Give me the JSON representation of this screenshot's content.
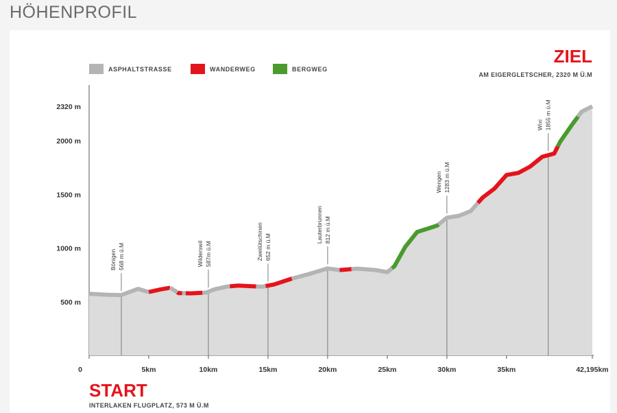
{
  "page": {
    "title": "HÖHENPROFIL"
  },
  "legend": [
    {
      "label": "ASPHALTSTRASSE",
      "color": "#b4b4b4"
    },
    {
      "label": "WANDERWEG",
      "color": "#e4141c"
    },
    {
      "label": "BERGWEG",
      "color": "#4a9a2e"
    }
  ],
  "finish": {
    "label": "ZIEL",
    "detail": "AM EIGERGLETSCHER, 2320 M Ü.M"
  },
  "start": {
    "label": "START",
    "detail": "INTERLAKEN FLUGPLATZ, 573 M Ü.M"
  },
  "chart_data": {
    "type": "area",
    "xlim": [
      0,
      42.195
    ],
    "ylim": [
      0,
      2330
    ],
    "x_ticks": [
      {
        "value": 0,
        "label": "0"
      },
      {
        "value": 5,
        "label": "5km"
      },
      {
        "value": 10,
        "label": "10km"
      },
      {
        "value": 15,
        "label": "15km"
      },
      {
        "value": 20,
        "label": "20km"
      },
      {
        "value": 25,
        "label": "25km"
      },
      {
        "value": 30,
        "label": "30km"
      },
      {
        "value": 35,
        "label": "35km"
      },
      {
        "value": 42.195,
        "label": "42,195km"
      }
    ],
    "y_ticks": [
      {
        "value": 500,
        "label": "500 m"
      },
      {
        "value": 1000,
        "label": "1000 m"
      },
      {
        "value": 1500,
        "label": "1500 m"
      },
      {
        "value": 2000,
        "label": "2000 m"
      },
      {
        "value": 2320,
        "label": "2320 m"
      }
    ],
    "profile": [
      [
        0,
        573
      ],
      [
        1.5,
        565
      ],
      [
        2.7,
        562
      ],
      [
        4.1,
        620
      ],
      [
        5,
        590
      ],
      [
        6,
        615
      ],
      [
        6.8,
        630
      ],
      [
        7.5,
        580
      ],
      [
        8.5,
        578
      ],
      [
        9.8,
        585
      ],
      [
        10.5,
        615
      ],
      [
        11.5,
        640
      ],
      [
        12.5,
        650
      ],
      [
        13.5,
        645
      ],
      [
        14.5,
        640
      ],
      [
        15.5,
        660
      ],
      [
        17,
        715
      ],
      [
        18.5,
        760
      ],
      [
        20,
        810
      ],
      [
        21,
        795
      ],
      [
        22.5,
        808
      ],
      [
        24,
        795
      ],
      [
        25,
        775
      ],
      [
        25.6,
        830
      ],
      [
        26.5,
        1010
      ],
      [
        27.5,
        1150
      ],
      [
        28.5,
        1185
      ],
      [
        29.2,
        1210
      ],
      [
        30,
        1283
      ],
      [
        31,
        1300
      ],
      [
        32,
        1345
      ],
      [
        33,
        1470
      ],
      [
        34,
        1555
      ],
      [
        35,
        1680
      ],
      [
        36,
        1700
      ],
      [
        37,
        1760
      ],
      [
        38,
        1850
      ],
      [
        39,
        1880
      ],
      [
        39.5,
        1990
      ],
      [
        40.5,
        2150
      ],
      [
        41.3,
        2270
      ],
      [
        42.195,
        2320
      ]
    ],
    "segments": [
      {
        "type": "Asphaltstrasse",
        "from": 0,
        "to": 5
      },
      {
        "type": "Wanderweg",
        "from": 5,
        "to": 6.8
      },
      {
        "type": "Asphaltstrasse",
        "from": 6.8,
        "to": 7.4
      },
      {
        "type": "Wanderweg",
        "from": 7.4,
        "to": 7.8
      },
      {
        "type": "Asphaltstrasse",
        "from": 7.8,
        "to": 8.1
      },
      {
        "type": "Wanderweg",
        "from": 8.1,
        "to": 9.5
      },
      {
        "type": "Asphaltstrasse",
        "from": 9.5,
        "to": 11.8
      },
      {
        "type": "Wanderweg",
        "from": 11.8,
        "to": 14
      },
      {
        "type": "Asphaltstrasse",
        "from": 14,
        "to": 14.8
      },
      {
        "type": "Wanderweg",
        "from": 14.8,
        "to": 17
      },
      {
        "type": "Asphaltstrasse",
        "from": 17,
        "to": 21
      },
      {
        "type": "Wanderweg",
        "from": 21,
        "to": 22
      },
      {
        "type": "Asphaltstrasse",
        "from": 22,
        "to": 25.4
      },
      {
        "type": "Bergweg",
        "from": 25.4,
        "to": 29.3
      },
      {
        "type": "Asphaltstrasse",
        "from": 29.3,
        "to": 32.6
      },
      {
        "type": "Wanderweg",
        "from": 32.6,
        "to": 39.3
      },
      {
        "type": "Bergweg",
        "from": 39.3,
        "to": 41
      },
      {
        "type": "Asphaltstrasse",
        "from": 41,
        "to": 42.195
      }
    ],
    "places": [
      {
        "name": "Bönigen",
        "elevation": "568 m ü.M",
        "km": 2.7
      },
      {
        "name": "Wilderswil",
        "elevation": "587m ü.M",
        "km": 10
      },
      {
        "name": "Zweilütschinen",
        "elevation": "652 m ü.M",
        "km": 15
      },
      {
        "name": "Lauterbrunnen",
        "elevation": "812 m ü.M",
        "km": 20
      },
      {
        "name": "Wengen",
        "elevation": "1283 m ü.M",
        "km": 30
      },
      {
        "name": "Wixi",
        "elevation": "1855 m ü.M",
        "km": 38.5
      }
    ]
  }
}
